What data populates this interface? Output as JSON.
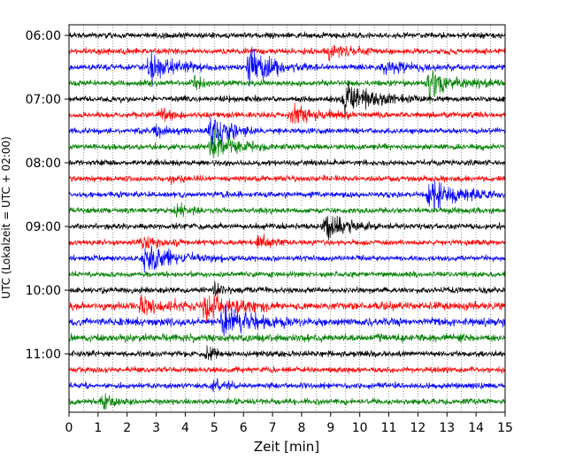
{
  "chart_data": {
    "type": "line",
    "title": "",
    "xlabel": "Zeit  [min]",
    "ylabel": "UTC (Lokalzeit = UTC + 02:00)",
    "xlim": [
      0,
      15
    ],
    "x_ticks": [
      "0",
      "1",
      "2",
      "3",
      "4",
      "5",
      "6",
      "7",
      "8",
      "9",
      "10",
      "11",
      "12",
      "13",
      "14",
      "15"
    ],
    "y_ticks": [
      {
        "label": "06:00",
        "row": 0
      },
      {
        "label": "07:00",
        "row": 4
      },
      {
        "label": "08:00",
        "row": 8
      },
      {
        "label": "09:00",
        "row": 12
      },
      {
        "label": "10:00",
        "row": 16
      },
      {
        "label": "11:00",
        "row": 20
      }
    ],
    "grid": "vertical dotted",
    "trace_colors": [
      "#000000",
      "#ff0000",
      "#0000ff",
      "#008000"
    ],
    "rows": [
      {
        "start": "06:00",
        "amp": 3,
        "events": []
      },
      {
        "start": "06:15",
        "amp": 3,
        "events": [
          {
            "t": 8.9,
            "a": 8,
            "d": 0.6
          }
        ]
      },
      {
        "start": "06:30",
        "amp": 3,
        "events": [
          {
            "t": 2.8,
            "a": 14,
            "d": 0.8
          },
          {
            "t": 6.2,
            "a": 16,
            "d": 0.8
          },
          {
            "t": 10.8,
            "a": 6,
            "d": 0.8
          }
        ]
      },
      {
        "start": "06:45",
        "amp": 3,
        "events": [
          {
            "t": 4.3,
            "a": 7,
            "d": 0.3
          },
          {
            "t": 12.4,
            "a": 13,
            "d": 0.9
          }
        ]
      },
      {
        "start": "07:00",
        "amp": 3,
        "events": [
          {
            "t": 9.5,
            "a": 16,
            "d": 0.9
          }
        ]
      },
      {
        "start": "07:15",
        "amp": 3,
        "events": [
          {
            "t": 3.2,
            "a": 7,
            "d": 0.4
          },
          {
            "t": 7.7,
            "a": 10,
            "d": 0.8
          }
        ]
      },
      {
        "start": "07:30",
        "amp": 3,
        "events": [
          {
            "t": 3.0,
            "a": 5,
            "d": 0.4
          },
          {
            "t": 4.9,
            "a": 18,
            "d": 0.6
          }
        ]
      },
      {
        "start": "07:45",
        "amp": 3,
        "events": [
          {
            "t": 4.9,
            "a": 16,
            "d": 0.7
          }
        ]
      },
      {
        "start": "08:00",
        "amp": 3,
        "events": []
      },
      {
        "start": "08:15",
        "amp": 3,
        "events": [
          {
            "t": 3.5,
            "a": 5,
            "d": 0.4
          }
        ]
      },
      {
        "start": "08:30",
        "amp": 3,
        "events": [
          {
            "t": 12.4,
            "a": 15,
            "d": 0.9
          }
        ]
      },
      {
        "start": "08:45",
        "amp": 3,
        "events": [
          {
            "t": 3.7,
            "a": 6,
            "d": 0.4
          }
        ]
      },
      {
        "start": "09:00",
        "amp": 3,
        "events": [
          {
            "t": 8.8,
            "a": 14,
            "d": 0.7
          }
        ]
      },
      {
        "start": "09:15",
        "amp": 3,
        "events": [
          {
            "t": 2.5,
            "a": 7,
            "d": 0.6
          },
          {
            "t": 6.5,
            "a": 6,
            "d": 0.4
          }
        ]
      },
      {
        "start": "09:30",
        "amp": 3,
        "events": [
          {
            "t": 2.6,
            "a": 14,
            "d": 0.9
          }
        ]
      },
      {
        "start": "09:45",
        "amp": 3,
        "events": []
      },
      {
        "start": "10:00",
        "amp": 3,
        "events": [
          {
            "t": 5.0,
            "a": 6,
            "d": 0.4
          }
        ]
      },
      {
        "start": "10:15",
        "amp": 4,
        "events": [
          {
            "t": 2.5,
            "a": 8,
            "d": 0.8
          },
          {
            "t": 4.7,
            "a": 14,
            "d": 0.9
          }
        ]
      },
      {
        "start": "10:30",
        "amp": 4,
        "events": [
          {
            "t": 5.3,
            "a": 14,
            "d": 0.9
          }
        ]
      },
      {
        "start": "10:45",
        "amp": 4,
        "events": []
      },
      {
        "start": "11:00",
        "amp": 3,
        "events": [
          {
            "t": 4.8,
            "a": 8,
            "d": 0.3
          }
        ]
      },
      {
        "start": "11:15",
        "amp": 3,
        "events": []
      },
      {
        "start": "11:30",
        "amp": 3,
        "events": [
          {
            "t": 5.0,
            "a": 5,
            "d": 0.3
          }
        ]
      },
      {
        "start": "11:45",
        "amp": 3,
        "events": [
          {
            "t": 1.1,
            "a": 7,
            "d": 0.4
          }
        ]
      }
    ]
  }
}
